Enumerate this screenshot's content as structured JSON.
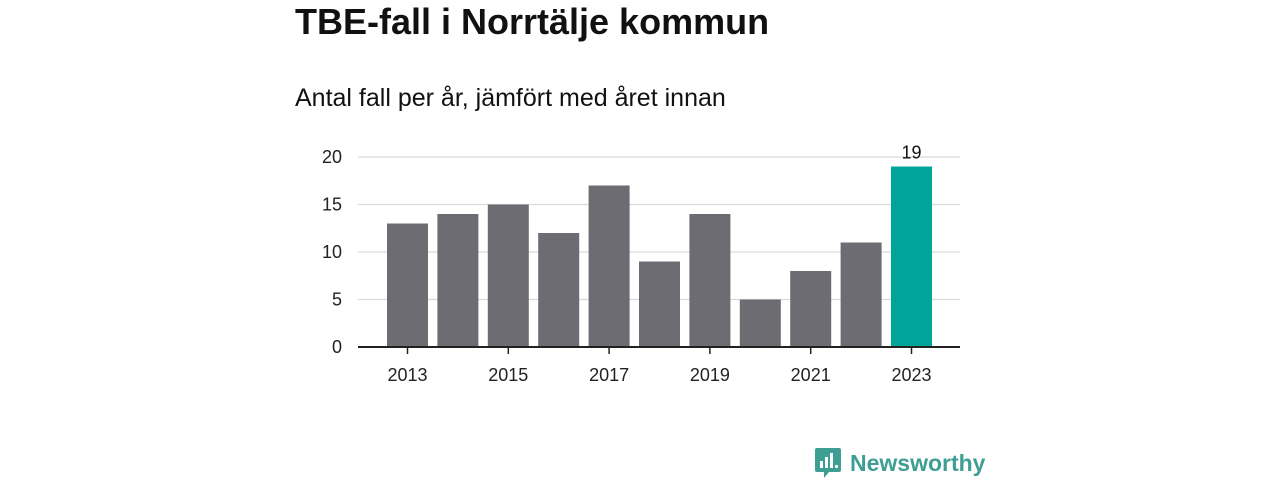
{
  "header": {
    "title": "TBE-fall i Norrtälje kommun",
    "subtitle": "Antal fall per år, jämfört med året innan"
  },
  "brand": {
    "name": "Newsworthy",
    "color": "#3f9e93",
    "icon": "newsworthy-logo-icon"
  },
  "colors": {
    "bar": "#6d6c72",
    "highlight": "#00a599",
    "grid": "#d9d9d9",
    "axis": "#222222"
  },
  "chart_data": {
    "type": "bar",
    "title": "TBE-fall i Norrtälje kommun",
    "subtitle": "Antal fall per år, jämfört med året innan",
    "xlabel": "",
    "ylabel": "",
    "categories": [
      "2013",
      "2014",
      "2015",
      "2016",
      "2017",
      "2018",
      "2019",
      "2020",
      "2021",
      "2022",
      "2023"
    ],
    "values": [
      13,
      14,
      15,
      12,
      17,
      9,
      14,
      5,
      8,
      11,
      19
    ],
    "x_tick_labels": [
      "2013",
      "2015",
      "2017",
      "2019",
      "2021",
      "2023"
    ],
    "y_ticks": [
      0,
      5,
      10,
      15,
      20
    ],
    "ylim": [
      0,
      20
    ],
    "grid": true,
    "legend": "none",
    "highlight_category": "2023",
    "data_labels": [
      {
        "category": "2023",
        "text": "19"
      }
    ]
  }
}
